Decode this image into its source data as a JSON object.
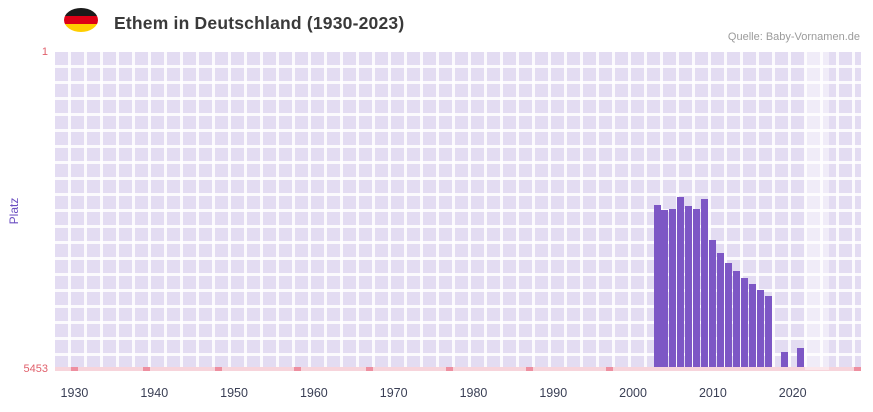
{
  "header": {
    "title": "Ethem in Deutschland (1930-2023)",
    "source": "Quelle: Baby-Vornamen.de",
    "flag_icon": "german-flag-icon",
    "flag_colors": [
      "#1a1a1a",
      "#dd0016",
      "#ffce00"
    ]
  },
  "chart_data": {
    "type": "bar",
    "title": "Ethem in Deutschland (1930-2023)",
    "xlabel": "",
    "ylabel": "Platz",
    "y_axis": {
      "min": 1,
      "max": 5453,
      "inverted": true,
      "top_tick_label": "1",
      "bottom_tick_label": "5453"
    },
    "x_axis": {
      "range": [
        1928,
        2029
      ],
      "ticks": [
        1930,
        1940,
        1950,
        1960,
        1970,
        1980,
        1990,
        2000,
        2010,
        2020
      ]
    },
    "bars": [
      {
        "year": 2003,
        "rank": 2620
      },
      {
        "year": 2004,
        "rank": 2710
      },
      {
        "year": 2005,
        "rank": 2700
      },
      {
        "year": 2006,
        "rank": 2490
      },
      {
        "year": 2007,
        "rank": 2640
      },
      {
        "year": 2008,
        "rank": 2700
      },
      {
        "year": 2009,
        "rank": 2520
      },
      {
        "year": 2010,
        "rank": 3230
      },
      {
        "year": 2011,
        "rank": 3450
      },
      {
        "year": 2012,
        "rank": 3620
      },
      {
        "year": 2013,
        "rank": 3760
      },
      {
        "year": 2014,
        "rank": 3870
      },
      {
        "year": 2015,
        "rank": 3970
      },
      {
        "year": 2016,
        "rank": 4080
      },
      {
        "year": 2017,
        "rank": 4180
      },
      {
        "year": 2019,
        "rank": 5140
      },
      {
        "year": 2021,
        "rank": 5080
      }
    ],
    "baseline_mark_years": [
      1930,
      1939,
      1948,
      1958,
      1967,
      1977,
      1987,
      1997
    ],
    "highlight_band_years": [
      2022,
      2025
    ],
    "grid": true,
    "legend": false,
    "colors": {
      "bar": "#7d57c5",
      "plot_background": "#e3dcf2",
      "grid_line": "rgba(255,255,255,0.85)",
      "baseline": "#f7d4db",
      "baseline_mark": "#ee8fa0",
      "y_tick_label": "#e05f6b",
      "y_axis_title": "#6b4ec1",
      "x_tick_label": "#3a3f55",
      "highlight_band": "rgba(255,255,255,0.45)"
    }
  }
}
